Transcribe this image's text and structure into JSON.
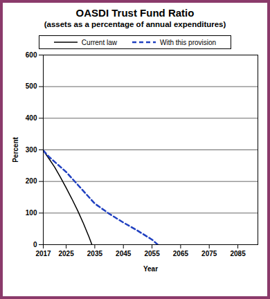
{
  "chart_data": {
    "type": "line",
    "title": "OASDI Trust Fund Ratio",
    "subtitle": "(assets as a percentage of annual expenditures)",
    "x_label": "Year",
    "y_label": "Percent",
    "x": [
      2017,
      2019,
      2021,
      2023,
      2025,
      2027,
      2029,
      2031,
      2033,
      2034,
      2035,
      2040,
      2045,
      2050,
      2055,
      2057
    ],
    "series": [
      {
        "name": "Current law",
        "color": "#000000",
        "line_style": "solid",
        "values": [
          298,
          272,
          245,
          213,
          180,
          145,
          108,
          68,
          24,
          0,
          null,
          null,
          null,
          null,
          null,
          null
        ]
      },
      {
        "name": "With this provision",
        "color": "#2040c0",
        "line_style": "dashed",
        "values": [
          298,
          278,
          262,
          246,
          230,
          210,
          190,
          170,
          150,
          140,
          130,
          98,
          70,
          44,
          16,
          0
        ]
      }
    ],
    "xlim": [
      2017,
      2092
    ],
    "ylim": [
      0,
      600
    ],
    "xticks": [
      2017,
      2025,
      2035,
      2045,
      2055,
      2065,
      2075,
      2085
    ],
    "yticks": [
      0,
      100,
      200,
      300,
      400,
      500,
      600
    ],
    "grid": true,
    "legend": "top"
  }
}
